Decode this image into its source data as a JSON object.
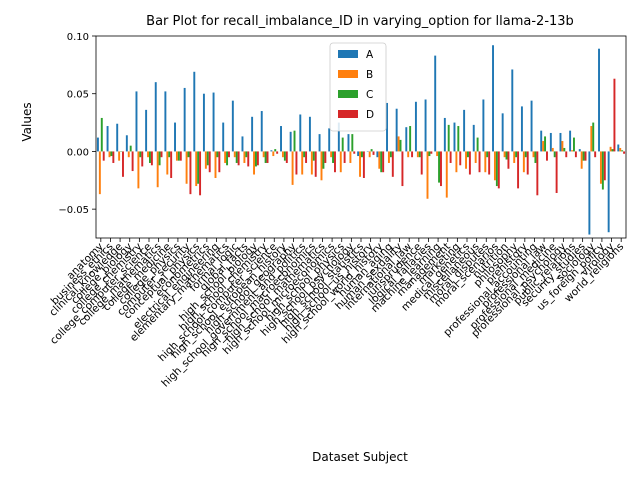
{
  "chart_data": {
    "type": "bar",
    "title": "Bar Plot for recall_imbalance_ID in varying_option for llama-2-13b",
    "xlabel": "Dataset Subject",
    "ylabel": "Values",
    "ylim": [
      -0.075,
      0.1
    ],
    "yticks": [
      "−0.05",
      "0.00",
      "0.05",
      "0.10"
    ],
    "ytick_values": [
      -0.05,
      0.0,
      0.05,
      0.1
    ],
    "grid": false,
    "legend_position": "top-center",
    "colors": [
      "#1f77b4",
      "#ff7f0e",
      "#2ca02c",
      "#d62728"
    ],
    "categories": [
      "anatomy",
      "business_ethics",
      "clinical_knowledge",
      "college_biology",
      "college_chemistry",
      "college_computer_science",
      "college_mathematics",
      "college_medicine",
      "college_physics",
      "computer_security",
      "conceptual_physics",
      "econometrics",
      "electrical_engineering",
      "elementary_mathematics",
      "formal_logic",
      "global_facts",
      "high_school_biology",
      "high_school_chemistry",
      "high_school_computer_science",
      "high_school_european_history",
      "high_school_geography",
      "high_school_government_and_politics",
      "high_school_macroeconomics",
      "high_school_mathematics",
      "high_school_microeconomics",
      "high_school_physics",
      "high_school_psychology",
      "high_school_statistics",
      "high_school_us_history",
      "high_school_world_history",
      "human_aging",
      "human_sexuality",
      "international_law",
      "jurisprudence",
      "logical_fallacies",
      "machine_learning",
      "management",
      "marketing",
      "medical_genetics",
      "miscellaneous",
      "moral_disputes",
      "moral_scenarios",
      "nutrition",
      "philosophy",
      "prehistory",
      "professional_accounting",
      "professional_law",
      "professional_medicine",
      "professional_psychology",
      "public_relations",
      "security_studies",
      "sociology",
      "us_foreign_policy",
      "virology",
      "world_religions"
    ],
    "series": [
      {
        "name": "A",
        "values": [
          0.012,
          0.022,
          0.024,
          0.014,
          0.052,
          0.036,
          0.06,
          0.052,
          0.025,
          0.055,
          0.069,
          0.05,
          0.051,
          0.025,
          0.044,
          0.013,
          0.03,
          0.035,
          0.001,
          0.022,
          0.017,
          0.032,
          0.03,
          0.015,
          0.02,
          0.025,
          0.015,
          -0.004,
          0.0,
          -0.005,
          0.042,
          0.037,
          0.021,
          0.043,
          0.045,
          0.083,
          0.029,
          0.025,
          0.036,
          0.023,
          0.045,
          0.092,
          0.033,
          0.071,
          0.039,
          0.044,
          0.018,
          0.016,
          0.016,
          0.018,
          0.002,
          -0.072,
          0.089,
          -0.07,
          0.006
        ]
      },
      {
        "name": "B",
        "values": [
          -0.037,
          -0.005,
          -0.008,
          -0.005,
          -0.032,
          -0.005,
          -0.031,
          -0.02,
          -0.008,
          -0.028,
          -0.03,
          -0.015,
          -0.023,
          -0.01,
          -0.005,
          -0.01,
          -0.02,
          -0.005,
          -0.004,
          -0.005,
          -0.029,
          -0.02,
          -0.02,
          -0.025,
          -0.005,
          -0.018,
          -0.01,
          -0.022,
          -0.005,
          -0.015,
          -0.01,
          0.013,
          -0.005,
          -0.005,
          -0.041,
          -0.004,
          -0.04,
          -0.018,
          -0.015,
          -0.01,
          -0.018,
          -0.025,
          -0.005,
          -0.01,
          -0.018,
          -0.005,
          0.009,
          0.003,
          0.009,
          0.001,
          -0.015,
          0.022,
          -0.028,
          0.004,
          0.003
        ]
      },
      {
        "name": "C",
        "values": [
          0.029,
          -0.004,
          0.0,
          0.005,
          -0.005,
          -0.01,
          -0.012,
          -0.005,
          -0.008,
          -0.005,
          -0.028,
          -0.012,
          -0.005,
          -0.012,
          -0.01,
          -0.005,
          -0.013,
          -0.01,
          0.002,
          -0.008,
          0.018,
          -0.005,
          -0.008,
          -0.015,
          -0.01,
          0.012,
          0.015,
          -0.005,
          0.002,
          -0.018,
          -0.005,
          0.01,
          0.022,
          -0.005,
          -0.004,
          -0.027,
          0.023,
          0.022,
          -0.005,
          0.012,
          -0.005,
          -0.03,
          -0.007,
          -0.005,
          -0.005,
          -0.01,
          0.013,
          -0.005,
          0.003,
          0.012,
          -0.008,
          0.025,
          -0.033,
          0.002,
          0.001
        ]
      },
      {
        "name": "D",
        "values": [
          -0.008,
          -0.01,
          -0.022,
          -0.017,
          -0.013,
          -0.012,
          -0.005,
          -0.023,
          -0.008,
          -0.037,
          -0.038,
          -0.018,
          -0.018,
          -0.005,
          -0.012,
          -0.013,
          -0.012,
          -0.01,
          -0.002,
          -0.01,
          -0.02,
          -0.01,
          -0.022,
          -0.01,
          -0.018,
          -0.01,
          -0.002,
          -0.023,
          -0.003,
          -0.018,
          -0.022,
          -0.03,
          -0.005,
          -0.02,
          -0.002,
          -0.03,
          -0.01,
          -0.012,
          -0.02,
          -0.018,
          -0.02,
          -0.032,
          -0.015,
          -0.032,
          -0.02,
          -0.038,
          -0.008,
          -0.036,
          -0.005,
          -0.005,
          -0.008,
          -0.005,
          -0.025,
          0.063,
          -0.002
        ]
      }
    ]
  }
}
